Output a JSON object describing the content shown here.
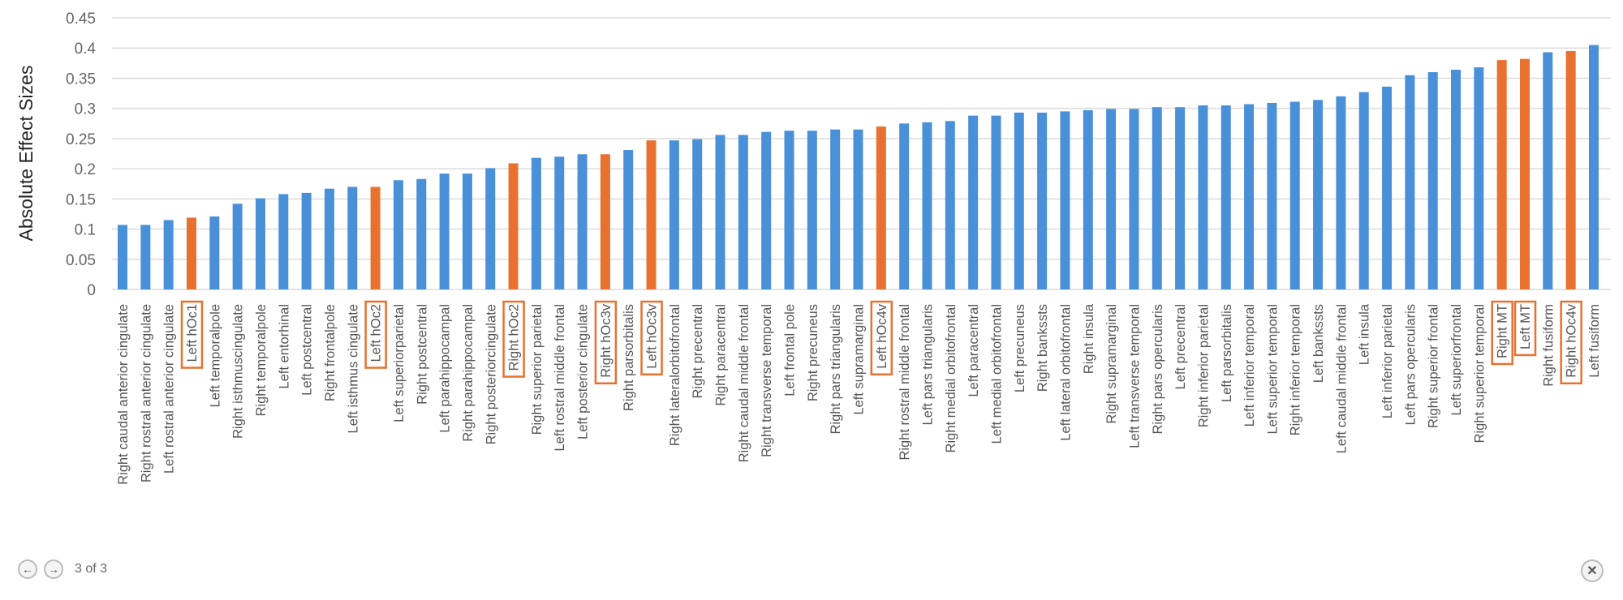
{
  "chart_data": {
    "type": "bar",
    "title": "",
    "xlabel": "",
    "ylabel": "Absolute Effect Sizes",
    "ylim": [
      0,
      0.45
    ],
    "yticks": [
      "0",
      "0.05",
      "0.1",
      "0.15",
      "0.2",
      "0.25",
      "0.3",
      "0.35",
      "0.4",
      "0.45"
    ],
    "grid": true,
    "colors": {
      "default": "#4A90D9",
      "highlight": "#E8712F",
      "box": "#E8712F"
    },
    "categories": [
      "Right caudal anterior cingulate",
      "Right rostral anterior cingulate",
      "Left rostral anterior cingulate",
      "Left hOc1",
      "Left temporalpole",
      "Right isthmuscingulate",
      "Right temporalpole",
      "Left entorhinal",
      "Left postcentral",
      "Right frontalpole",
      "Left isthmus cingulate",
      "Left hOc2",
      "Left superiorparietal",
      "Right postcentral",
      "Left parahippocampal",
      "Right parahippocampal",
      "Right posteriorcingulate",
      "Right hOc2",
      "Right superior parietal",
      "Left rostral middle frontal",
      "Left posterior cingulate",
      "Right hOc3v",
      "Right parsorbitalis",
      "Left hOc3v",
      "Right lateralorbitofrontal",
      "Right precentral",
      "Right paracentral",
      "Right caudal middle frontal",
      "Right transverse temporal",
      "Left frontal pole",
      "Right precuneus",
      "Right pars triangularis",
      "Left supramarginal",
      "Left hOc4v",
      "Right rostral middle frontal",
      "Left pars triangularis",
      "Right medial orbitofrontal",
      "Left paracentral",
      "Left medial orbitofrontal",
      "Left precuneus",
      "Right bankssts",
      "Left lateral orbitofrontal",
      "Right insula",
      "Right supramarginal",
      "Left transverse temporal",
      "Right pars opercularis",
      "Left precentral",
      "Right inferior parietal",
      "Left parsorbitalis",
      "Left inferior temporal",
      "Left superior temporal",
      "Right inferior temporal",
      "Left bankssts",
      "Left caudal middle frontal",
      "Left insula",
      "Left inferior parietal",
      "Left pars opercularis",
      "Right superior frontal",
      "Left superiorfrontal",
      "Right superior temporal",
      "Right MT",
      "Left MT",
      "Right fusiform",
      "Right hOc4v",
      "Left fusiform"
    ],
    "values": [
      0.107,
      0.107,
      0.115,
      0.119,
      0.121,
      0.142,
      0.151,
      0.158,
      0.16,
      0.167,
      0.17,
      0.17,
      0.181,
      0.183,
      0.192,
      0.192,
      0.201,
      0.209,
      0.218,
      0.22,
      0.224,
      0.224,
      0.231,
      0.247,
      0.247,
      0.249,
      0.256,
      0.256,
      0.261,
      0.263,
      0.263,
      0.265,
      0.265,
      0.27,
      0.275,
      0.277,
      0.279,
      0.288,
      0.288,
      0.293,
      0.293,
      0.295,
      0.297,
      0.299,
      0.299,
      0.302,
      0.302,
      0.305,
      0.305,
      0.307,
      0.309,
      0.311,
      0.314,
      0.32,
      0.327,
      0.336,
      0.355,
      0.36,
      0.364,
      0.368,
      0.38,
      0.382,
      0.393,
      0.395,
      0.405
    ],
    "highlighted": [
      "Left hOc1",
      "Left hOc2",
      "Right hOc2",
      "Right hOc3v",
      "Left hOc3v",
      "Left hOc4v",
      "Right MT",
      "Left MT",
      "Right hOc4v"
    ]
  },
  "viewer": {
    "prev_icon": "arrow-left-icon",
    "next_icon": "arrow-right-icon",
    "page_text": "3 of 3",
    "close_icon": "close-icon",
    "prev": "←",
    "next": "→",
    "close": "✕"
  }
}
